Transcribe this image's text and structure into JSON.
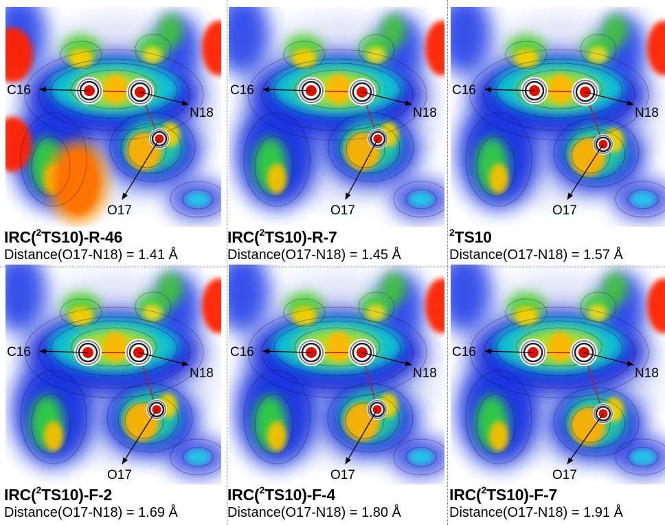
{
  "panels": [
    {
      "title_prefix": "IRC(",
      "title_sup": "2",
      "title_main": "TS10)-R-46",
      "distance_text": "Distance(O17-N18) = 1.41 Å",
      "distance_value": 1.41,
      "labels": {
        "c16": "C16",
        "n18": "N18",
        "o17": "O17"
      }
    },
    {
      "title_prefix": "IRC(",
      "title_sup": "2",
      "title_main": "TS10)-R-7",
      "distance_text": "Distance(O17-N18) = 1.45 Å",
      "distance_value": 1.45,
      "labels": {
        "c16": "C16",
        "n18": "N18",
        "o17": "O17"
      }
    },
    {
      "title_prefix": "",
      "title_sup": "2",
      "title_main": "TS10",
      "distance_text": "Distance(O17-N18) = 1.57 Å",
      "distance_value": 1.57,
      "labels": {
        "c16": "C16",
        "n18": "N18",
        "o17": "O17"
      }
    },
    {
      "title_prefix": "IRC(",
      "title_sup": "2",
      "title_main": "TS10)-F-2",
      "distance_text": "Distance(O17-N18) = 1.69 Å",
      "distance_value": 1.69,
      "labels": {
        "c16": "C16",
        "n18": "N18",
        "o17": "O17"
      }
    },
    {
      "title_prefix": "IRC(",
      "title_sup": "2",
      "title_main": "TS10)-F-4",
      "distance_text": "Distance(O17-N18) = 1.80 Å",
      "distance_value": 1.8,
      "labels": {
        "c16": "C16",
        "n18": "N18",
        "o17": "O17"
      }
    },
    {
      "title_prefix": "IRC(",
      "title_sup": "2",
      "title_main": "TS10)-F-7",
      "distance_text": "Distance(O17-N18) = 1.91 Å",
      "distance_value": 1.91,
      "labels": {
        "c16": "C16",
        "n18": "N18",
        "o17": "O17"
      }
    }
  ],
  "colors": {
    "bond": "#d01010",
    "atom": "#e01000",
    "arrow": "#000000",
    "contour_line": "#000000"
  }
}
